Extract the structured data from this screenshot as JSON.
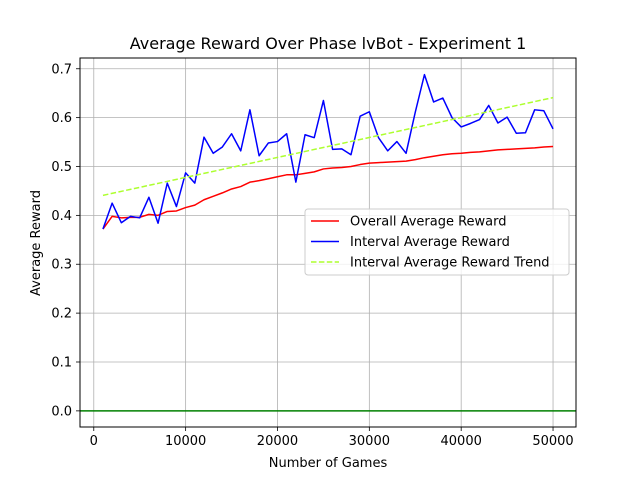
{
  "chart_data": {
    "type": "line",
    "title": "Average Reward Over Phase lvBot - Experiment 1",
    "xlabel": "Number of Games",
    "ylabel": "Average Reward",
    "xlim": [
      -1500,
      52500
    ],
    "ylim": [
      -0.033,
      0.722
    ],
    "xticks": [
      0,
      10000,
      20000,
      30000,
      40000,
      50000
    ],
    "xtick_labels": [
      "0",
      "10000",
      "20000",
      "30000",
      "40000",
      "50000"
    ],
    "yticks": [
      0.0,
      0.1,
      0.2,
      0.3,
      0.4,
      0.5,
      0.6,
      0.7
    ],
    "ytick_labels": [
      "0.0",
      "0.1",
      "0.2",
      "0.3",
      "0.4",
      "0.5",
      "0.6",
      "0.7"
    ],
    "grid": true,
    "legend_position": "center-right",
    "hline": {
      "y": 0.0,
      "color": "#008000"
    },
    "series": [
      {
        "name": "Overall Average Reward",
        "color": "#ff0000",
        "dash": "solid",
        "x": [
          1000,
          2000,
          3000,
          4000,
          5000,
          6000,
          7000,
          8000,
          9000,
          10000,
          11000,
          12000,
          13000,
          14000,
          15000,
          16000,
          17000,
          18000,
          19000,
          20000,
          21000,
          22000,
          23000,
          24000,
          25000,
          26000,
          27000,
          28000,
          29000,
          30000,
          31000,
          32000,
          33000,
          34000,
          35000,
          36000,
          37000,
          38000,
          39000,
          40000,
          41000,
          42000,
          43000,
          44000,
          45000,
          46000,
          47000,
          48000,
          49000,
          50000
        ],
        "y": [
          0.372,
          0.398,
          0.395,
          0.396,
          0.396,
          0.402,
          0.4,
          0.408,
          0.409,
          0.416,
          0.421,
          0.432,
          0.439,
          0.446,
          0.454,
          0.459,
          0.468,
          0.471,
          0.475,
          0.479,
          0.483,
          0.483,
          0.486,
          0.489,
          0.495,
          0.497,
          0.498,
          0.5,
          0.504,
          0.507,
          0.508,
          0.509,
          0.51,
          0.511,
          0.514,
          0.518,
          0.521,
          0.524,
          0.526,
          0.527,
          0.529,
          0.53,
          0.532,
          0.534,
          0.535,
          0.536,
          0.537,
          0.538,
          0.54,
          0.541
        ]
      },
      {
        "name": "Interval Average Reward",
        "color": "#0000ff",
        "dash": "solid",
        "x": [
          1000,
          2000,
          3000,
          4000,
          5000,
          6000,
          7000,
          8000,
          9000,
          10000,
          11000,
          12000,
          13000,
          14000,
          15000,
          16000,
          17000,
          18000,
          19000,
          20000,
          21000,
          22000,
          23000,
          24000,
          25000,
          26000,
          27000,
          28000,
          29000,
          30000,
          31000,
          32000,
          33000,
          34000,
          35000,
          36000,
          37000,
          38000,
          39000,
          40000,
          41000,
          42000,
          43000,
          44000,
          45000,
          46000,
          47000,
          48000,
          49000,
          50000
        ],
        "y": [
          0.372,
          0.425,
          0.385,
          0.398,
          0.395,
          0.437,
          0.384,
          0.466,
          0.418,
          0.487,
          0.466,
          0.56,
          0.527,
          0.54,
          0.567,
          0.532,
          0.616,
          0.522,
          0.548,
          0.551,
          0.567,
          0.468,
          0.565,
          0.559,
          0.635,
          0.535,
          0.536,
          0.524,
          0.603,
          0.612,
          0.559,
          0.532,
          0.551,
          0.527,
          0.611,
          0.688,
          0.632,
          0.64,
          0.6,
          0.581,
          0.588,
          0.596,
          0.625,
          0.589,
          0.601,
          0.568,
          0.569,
          0.616,
          0.614,
          0.577
        ]
      },
      {
        "name": "Interval Average Reward Trend",
        "color": "#adff2f",
        "dash": "dashed",
        "x": [
          1000,
          50000
        ],
        "y": [
          0.441,
          0.641
        ]
      }
    ]
  }
}
